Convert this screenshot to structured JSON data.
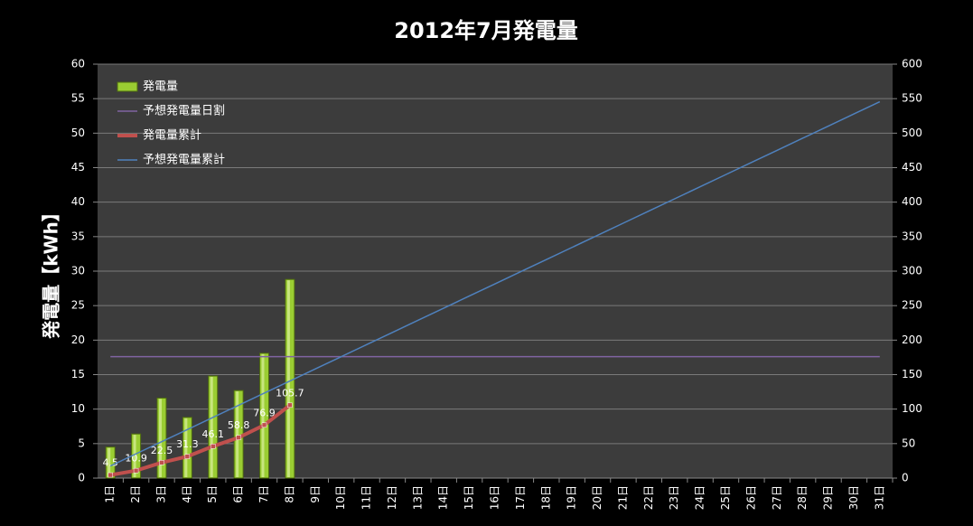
{
  "chart_data": {
    "type": "bar",
    "title": "2012年7月発電量",
    "y_label": "発電量【kWh】",
    "categories": [
      "1日",
      "2日",
      "3日",
      "4日",
      "5日",
      "6日",
      "7日",
      "8日",
      "9日",
      "10日",
      "11日",
      "12日",
      "13日",
      "14日",
      "15日",
      "16日",
      "17日",
      "18日",
      "19日",
      "20日",
      "21日",
      "22日",
      "23日",
      "24日",
      "25日",
      "26日",
      "27日",
      "28日",
      "29日",
      "30日",
      "31日"
    ],
    "series": [
      {
        "name": "発電量",
        "type": "bar",
        "color": "#9acd32",
        "values": [
          4.5,
          6.4,
          11.6,
          8.8,
          14.8,
          12.7,
          18.1,
          28.8,
          null,
          null,
          null,
          null,
          null,
          null,
          null,
          null,
          null,
          null,
          null,
          null,
          null,
          null,
          null,
          null,
          null,
          null,
          null,
          null,
          null,
          null,
          null
        ]
      },
      {
        "name": "予想発電量日割",
        "type": "line",
        "color": "#8064a2",
        "values": [
          17.6,
          17.6,
          17.6,
          17.6,
          17.6,
          17.6,
          17.6,
          17.6,
          17.6,
          17.6,
          17.6,
          17.6,
          17.6,
          17.6,
          17.6,
          17.6,
          17.6,
          17.6,
          17.6,
          17.6,
          17.6,
          17.6,
          17.6,
          17.6,
          17.6,
          17.6,
          17.6,
          17.6,
          17.6,
          17.6,
          17.6
        ]
      },
      {
        "name": "発電量累計",
        "type": "line",
        "axis": "y2",
        "color": "#c0504d",
        "markers": true,
        "data_labels": true,
        "values": [
          4.5,
          10.9,
          22.5,
          31.3,
          46.1,
          58.8,
          76.9,
          105.7,
          null,
          null,
          null,
          null,
          null,
          null,
          null,
          null,
          null,
          null,
          null,
          null,
          null,
          null,
          null,
          null,
          null,
          null,
          null,
          null,
          null,
          null,
          null
        ]
      },
      {
        "name": "予想発電量累計",
        "type": "line",
        "axis": "y2",
        "color": "#4f81bd",
        "values": [
          17.6,
          35.2,
          52.8,
          70.4,
          88,
          105.6,
          123.2,
          140.8,
          158.4,
          176,
          193.6,
          211.2,
          228.8,
          246.4,
          264,
          281.6,
          299.2,
          316.8,
          334.4,
          352,
          369.6,
          387.2,
          404.8,
          422.4,
          440,
          457.6,
          475.2,
          492.8,
          510.4,
          528,
          545.6
        ]
      }
    ],
    "ylim": [
      0,
      60
    ],
    "yticks": [
      0,
      5,
      10,
      15,
      20,
      25,
      30,
      35,
      40,
      45,
      50,
      55,
      60
    ],
    "y2lim": [
      0,
      600
    ],
    "y2ticks": [
      0,
      50,
      100,
      150,
      200,
      250,
      300,
      350,
      400,
      450,
      500,
      550,
      600
    ],
    "grid": true,
    "legend": "top-left"
  }
}
